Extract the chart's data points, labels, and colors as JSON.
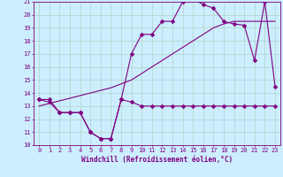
{
  "bg_color": "#cceeff",
  "grid_color": "#aaccbb",
  "line_color": "#800080",
  "xlim": [
    -0.5,
    23.5
  ],
  "ylim": [
    10,
    21
  ],
  "xticks": [
    0,
    1,
    2,
    3,
    4,
    5,
    6,
    7,
    8,
    9,
    10,
    11,
    12,
    13,
    14,
    15,
    16,
    17,
    18,
    19,
    20,
    21,
    22,
    23
  ],
  "yticks": [
    10,
    11,
    12,
    13,
    14,
    15,
    16,
    17,
    18,
    19,
    20,
    21
  ],
  "xlabel": "Windchill (Refroidissement éolien,°C)",
  "line1_x": [
    0,
    1,
    2,
    3,
    4,
    5,
    6,
    7,
    8,
    9,
    10,
    11,
    12,
    13,
    14,
    15,
    16,
    17,
    18,
    19,
    20,
    21,
    22,
    23
  ],
  "line1_y": [
    13.5,
    13.3,
    12.5,
    12.5,
    12.5,
    11.0,
    10.5,
    10.5,
    13.5,
    13.3,
    13.0,
    13.0,
    13.0,
    13.0,
    13.0,
    13.0,
    13.0,
    13.0,
    13.0,
    13.0,
    13.0,
    13.0,
    13.0,
    13.0
  ],
  "line2_x": [
    0,
    1,
    2,
    3,
    4,
    5,
    6,
    7,
    8,
    9,
    10,
    11,
    12,
    13,
    14,
    15,
    16,
    17,
    18,
    19,
    20,
    21,
    22,
    23
  ],
  "line2_y": [
    13.0,
    13.2,
    13.4,
    13.6,
    13.8,
    14.0,
    14.2,
    14.4,
    14.7,
    15.0,
    15.5,
    16.0,
    16.5,
    17.0,
    17.5,
    18.0,
    18.5,
    19.0,
    19.3,
    19.5,
    19.5,
    19.5,
    19.5,
    19.5
  ],
  "line3_x": [
    0,
    1,
    2,
    3,
    4,
    5,
    6,
    7,
    8,
    9,
    10,
    11,
    12,
    13,
    14,
    15,
    16,
    17,
    18,
    19,
    20,
    21,
    22,
    23
  ],
  "line3_y": [
    13.5,
    13.5,
    12.5,
    12.5,
    12.5,
    11.0,
    10.5,
    10.5,
    13.5,
    17.0,
    18.5,
    18.5,
    19.5,
    19.5,
    21.0,
    21.2,
    20.8,
    20.5,
    19.5,
    19.3,
    19.2,
    16.5,
    21.0,
    14.5
  ],
  "figsize": [
    3.2,
    2.0
  ],
  "dpi": 100
}
